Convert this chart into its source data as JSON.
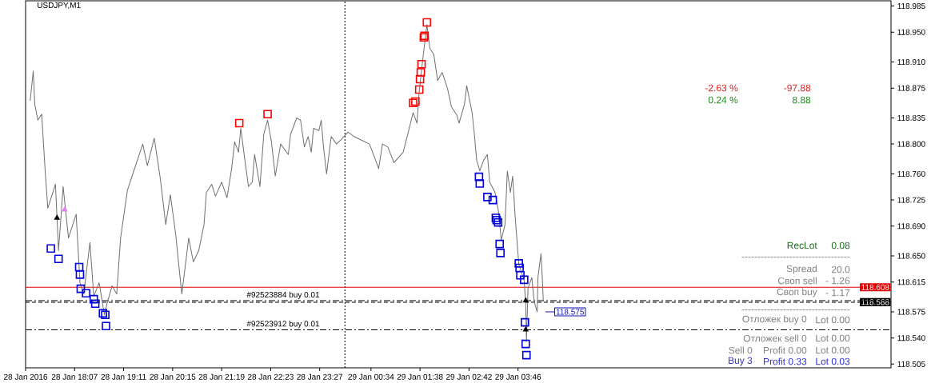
{
  "chart_data": {
    "type": "line",
    "title": "USDJPY,M1",
    "series": [
      {
        "color": "#707070",
        "x": [
          "2016-01-28T17:09",
          "2016-01-28T17:13",
          "2016-01-28T17:15",
          "2016-01-28T17:19",
          "2016-01-28T17:24",
          "2016-01-28T17:29",
          "2016-01-28T17:32",
          "2016-01-28T17:42",
          "2016-01-28T17:46",
          "2016-01-28T17:52",
          "2016-01-28T17:59",
          "2016-01-28T18:09",
          "2016-01-28T18:14",
          "2016-01-28T18:19",
          "2016-01-28T18:27",
          "2016-01-28T18:32",
          "2016-01-28T18:39",
          "2016-01-28T18:46",
          "2016-01-28T18:49",
          "2016-01-28T18:56",
          "2016-01-28T19:02",
          "2016-01-28T19:07",
          "2016-01-28T19:16",
          "2016-01-28T19:22",
          "2016-01-28T19:36",
          "2016-01-28T19:42",
          "2016-01-28T19:51",
          "2016-01-28T19:59",
          "2016-01-28T20:06",
          "2016-01-28T20:12",
          "2016-01-28T20:19",
          "2016-01-28T20:24",
          "2016-01-28T20:27",
          "2016-01-28T20:36",
          "2016-01-28T20:42",
          "2016-01-28T20:49",
          "2016-01-28T20:56",
          "2016-01-28T20:59",
          "2016-01-28T21:06",
          "2016-01-28T21:11",
          "2016-01-28T21:19",
          "2016-01-28T21:26",
          "2016-01-28T21:32",
          "2016-01-28T21:36",
          "2016-01-28T21:41",
          "2016-01-28T21:44",
          "2016-01-28T21:49",
          "2016-01-28T21:54",
          "2016-01-28T21:59",
          "2016-01-28T22:02",
          "2016-01-28T22:09",
          "2016-01-28T22:14",
          "2016-01-28T22:19",
          "2016-01-28T22:24",
          "2016-01-28T22:29",
          "2016-01-28T22:36",
          "2016-01-28T22:46",
          "2016-01-28T22:49",
          "2016-01-28T22:57",
          "2016-01-28T23:02",
          "2016-01-28T23:07",
          "2016-01-28T23:12",
          "2016-01-28T23:16",
          "2016-01-28T23:19",
          "2016-01-28T23:26",
          "2016-01-28T23:29",
          "2016-01-28T23:32",
          "2016-01-28T23:36",
          "2016-01-28T23:42",
          "2016-01-28T23:49",
          "2016-01-28T23:56",
          "2016-01-29T00:04",
          "2016-01-29T00:12",
          "2016-01-29T00:22",
          "2016-01-29T00:32",
          "2016-01-29T00:39",
          "2016-01-29T00:44",
          "2016-01-29T00:49",
          "2016-01-29T00:56",
          "2016-01-29T01:04",
          "2016-01-29T01:16",
          "2016-01-29T01:22",
          "2016-01-29T01:29",
          "2016-01-29T01:34",
          "2016-01-29T01:37",
          "2016-01-29T01:42",
          "2016-01-29T01:47",
          "2016-01-29T01:51",
          "2016-01-29T01:56",
          "2016-01-29T02:01",
          "2016-01-29T02:07",
          "2016-01-29T02:14",
          "2016-01-29T02:19",
          "2016-01-29T02:26",
          "2016-01-29T02:29",
          "2016-01-29T02:36",
          "2016-01-29T02:39",
          "2016-01-29T02:46",
          "2016-01-29T02:49",
          "2016-01-29T02:52",
          "2016-01-29T02:56",
          "2016-01-29T03:01",
          "2016-01-29T03:06",
          "2016-01-29T03:09",
          "2016-01-29T03:16",
          "2016-01-29T03:21",
          "2016-01-29T03:24",
          "2016-01-29T03:29",
          "2016-01-29T03:32",
          "2016-01-29T03:36",
          "2016-01-29T03:39",
          "2016-01-29T03:42",
          "2016-01-29T03:47",
          "2016-01-29T03:54",
          "2016-01-29T03:56",
          "2016-01-29T03:57",
          "2016-01-29T03:59",
          "2016-01-29T04:04",
          "2016-01-29T04:07",
          "2016-01-29T04:11",
          "2016-01-29T04:12",
          "2016-01-29T04:16",
          "2016-01-29T04:18",
          "2016-01-29T04:19"
        ],
        "values": [
          118.858,
          118.898,
          118.853,
          118.832,
          118.84,
          118.757,
          118.714,
          118.746,
          118.657,
          118.743,
          118.674,
          118.706,
          118.614,
          118.599,
          118.668,
          118.596,
          118.614,
          118.571,
          118.585,
          118.61,
          118.599,
          118.674,
          118.738,
          118.757,
          118.8,
          118.771,
          118.808,
          118.753,
          118.692,
          118.732,
          118.679,
          118.628,
          118.599,
          118.674,
          118.642,
          118.657,
          118.692,
          118.735,
          118.746,
          118.73,
          118.749,
          118.728,
          118.767,
          118.803,
          118.789,
          118.821,
          118.781,
          118.743,
          118.749,
          118.786,
          118.743,
          118.813,
          118.832,
          118.803,
          118.757,
          118.8,
          118.786,
          118.813,
          118.835,
          118.832,
          118.796,
          118.81,
          118.789,
          118.821,
          118.818,
          118.832,
          118.796,
          118.76,
          118.81,
          118.8,
          118.807,
          118.816,
          118.81,
          118.805,
          118.8,
          118.781,
          118.767,
          118.8,
          118.796,
          118.775,
          118.789,
          118.813,
          118.842,
          118.828,
          118.871,
          118.917,
          118.96,
          118.928,
          118.92,
          118.885,
          118.896,
          118.874,
          118.85,
          118.839,
          118.828,
          118.853,
          118.878,
          118.842,
          118.813,
          118.778,
          118.764,
          118.778,
          118.786,
          118.749,
          118.735,
          118.706,
          118.671,
          118.692,
          118.764,
          118.735,
          118.757,
          118.706,
          118.639,
          118.617,
          118.585,
          118.535,
          118.607,
          118.621,
          118.589,
          118.575,
          118.621,
          118.653,
          118.614,
          118.589
        ]
      },
      {
        "type": "scatter",
        "marker": "square",
        "color": "#ff0000",
        "x": [
          "2016-01-28T21:42",
          "2016-01-28T22:19",
          "2016-01-29T01:29",
          "2016-01-29T01:32",
          "2016-01-29T01:37",
          "2016-01-29T01:38",
          "2016-01-29T01:39",
          "2016-01-29T01:40",
          "2016-01-29T01:43",
          "2016-01-29T01:44",
          "2016-01-29T01:47"
        ],
        "values": [
          118.828,
          118.84,
          118.855,
          118.857,
          118.873,
          118.887,
          118.896,
          118.907,
          118.943,
          118.945,
          118.963
        ]
      },
      {
        "type": "scatter",
        "marker": "square",
        "color": "#0000dd",
        "x": [
          "2016-01-28T17:36",
          "2016-01-28T17:46",
          "2016-01-28T18:13",
          "2016-01-28T18:14",
          "2016-01-28T18:15",
          "2016-01-28T18:22",
          "2016-01-28T18:32",
          "2016-01-28T18:34",
          "2016-01-28T18:44",
          "2016-01-28T18:47",
          "2016-01-28T18:48",
          "2016-01-29T02:55",
          "2016-01-29T02:56",
          "2016-01-29T03:06",
          "2016-01-29T03:13",
          "2016-01-29T03:17",
          "2016-01-29T03:18",
          "2016-01-29T03:20",
          "2016-01-29T03:22",
          "2016-01-29T03:23",
          "2016-01-29T03:47",
          "2016-01-29T03:48",
          "2016-01-29T03:49",
          "2016-01-29T03:54",
          "2016-01-29T03:55",
          "2016-01-29T03:56",
          "2016-01-29T03:57"
        ],
        "values": [
          118.66,
          118.646,
          118.635,
          118.625,
          118.606,
          118.6,
          118.592,
          118.586,
          118.573,
          118.571,
          118.556,
          118.756,
          118.747,
          118.729,
          118.725,
          118.701,
          118.698,
          118.695,
          118.666,
          118.654,
          118.64,
          118.634,
          118.624,
          118.618,
          118.561,
          118.532,
          118.517
        ]
      },
      {
        "type": "scatter",
        "marker": "triangle",
        "color": "#000000",
        "x": [
          "2016-01-28T17:44",
          "2016-01-29T03:56",
          "2016-01-29T03:56"
        ],
        "values": [
          118.701,
          118.59,
          118.551
        ]
      },
      {
        "type": "scatter",
        "marker": "triangle",
        "color": "#e080f0",
        "x": [
          "2016-01-28T17:54"
        ],
        "values": [
          118.712
        ]
      }
    ],
    "xlim": [
      "2016-01-28T17:03",
      "2016-01-29T11:53"
    ],
    "xticks": [
      {
        "value": "2016-01-28T17:03",
        "label": "28 Jan 2016"
      },
      {
        "value": "2016-01-28T18:07",
        "label": "28 Jan 18:07"
      },
      {
        "value": "2016-01-28T19:11",
        "label": "28 Jan 19:11"
      },
      {
        "value": "2016-01-28T20:15",
        "label": "28 Jan 20:15"
      },
      {
        "value": "2016-01-28T21:19",
        "label": "28 Jan 21:19"
      },
      {
        "value": "2016-01-28T22:23",
        "label": "28 Jan 22:23"
      },
      {
        "value": "2016-01-28T23:27",
        "label": "28 Jan 23:27"
      },
      {
        "value": "2016-01-29T00:34",
        "label": "29 Jan 00:34"
      },
      {
        "value": "2016-01-29T01:38",
        "label": "29 Jan 01:38"
      },
      {
        "value": "2016-01-29T02:42",
        "label": "29 Jan 02:42"
      },
      {
        "value": "2016-01-29T03:46",
        "label": "29 Jan 03:46"
      }
    ],
    "ylim": [
      118.5,
      118.992
    ],
    "yticks": [
      118.985,
      {
        "value": 118.95,
        "label": "118.950"
      },
      {
        "value": 118.91,
        "label": "118.910"
      },
      118.875,
      118.835,
      {
        "value": 118.8,
        "label": "118.800"
      },
      {
        "value": 118.76,
        "label": "118.760"
      },
      118.725,
      {
        "value": 118.69,
        "label": "118.690"
      },
      {
        "value": 118.65,
        "label": "118.650"
      },
      118.615,
      118.575,
      {
        "value": 118.54,
        "label": "118.540"
      },
      118.505
    ],
    "ref_lines": [
      {
        "axis": "x",
        "value": "2016-01-29T00:00",
        "line_style": "dotted"
      },
      {
        "axis": "y",
        "value": 118.608,
        "label": "118.608",
        "color": "#e00000",
        "line_style": "solid"
      },
      {
        "axis": "y",
        "value": 118.588,
        "label": "118.588",
        "color": "#000000",
        "line_style": "dashed"
      },
      {
        "axis": "y",
        "value": 118.59,
        "label": "#92523884 buy 0.01",
        "line_style": "dashdot"
      },
      {
        "axis": "y",
        "value": 118.551,
        "label": "#92523912 buy 0.01",
        "line_style": "dashdot"
      }
    ],
    "annotations": [
      "-2.63 %",
      "-97.88",
      "0.24 %",
      "8.88",
      "RecLot",
      "0.08",
      "----------------------------------",
      "Spread",
      "20.0",
      "Своп sell",
      "- 1.26",
      "Своп buy",
      "- 1.17",
      "----------------------------------",
      "Отложек buy 0",
      "Lot 0.00",
      "Отложек sell 0",
      "Lot 0.00",
      "Sell 0",
      "Profit 0.00",
      "Lot 0.00",
      "Buy 3",
      "Profit 0.33",
      "Lot 0.03",
      "118.575"
    ]
  }
}
